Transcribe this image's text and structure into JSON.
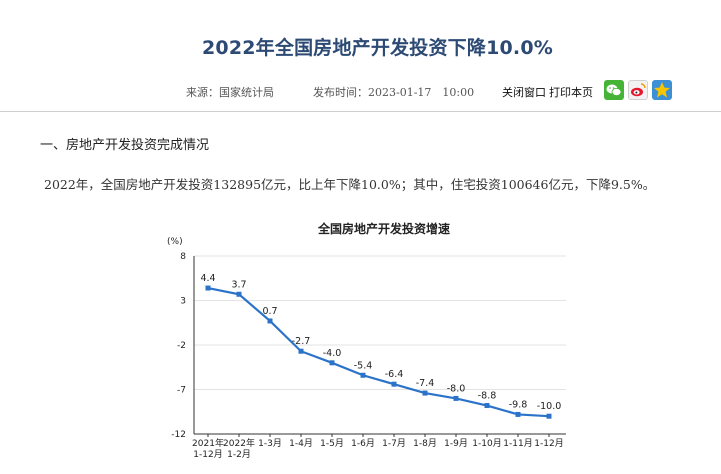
{
  "article": {
    "title": "2022年全国房地产开发投资下降10.0%",
    "source": "来源：国家统计局",
    "publish_time": "发布时间：2023-01-17　10:00",
    "close_label": "关闭窗口",
    "print_label": "打印本页",
    "share_icons": [
      "wechat-icon",
      "weibo-icon",
      "qzone-icon"
    ],
    "section_heading": "一、房地产开发投资完成情况",
    "paragraph": "2022年，全国房地产开发投资132895亿元，比上年下降10.0%；其中，住宅投资100646亿元，下降9.5%。"
  },
  "colors": {
    "title": "#2c4a73",
    "line": "#2b73c9",
    "wechat": "#45b336",
    "qzone": "#3d8fd6"
  },
  "chart_data": {
    "type": "line",
    "title": "全国房地产开发投资增速",
    "ylabel": "(%)",
    "ylim": [
      -12,
      8
    ],
    "yticks": [
      8,
      3,
      -2,
      -7,
      -12
    ],
    "categories": [
      [
        "2021年",
        "1-12月"
      ],
      [
        "2022年",
        "1-2月"
      ],
      [
        "1-3月"
      ],
      [
        "1-4月"
      ],
      [
        "1-5月"
      ],
      [
        "1-6月"
      ],
      [
        "1-7月"
      ],
      [
        "1-8月"
      ],
      [
        "1-9月"
      ],
      [
        "1-10月"
      ],
      [
        "1-11月"
      ],
      [
        "1-12月"
      ]
    ],
    "values": [
      4.4,
      3.7,
      0.7,
      -2.7,
      -4.0,
      -5.4,
      -6.4,
      -7.4,
      -8.0,
      -8.8,
      -9.8,
      -10.0
    ],
    "value_labels": [
      "4.4",
      "3.7",
      "0.7",
      "-2.7",
      "-4.0",
      "-5.4",
      "-6.4",
      "-7.4",
      "-8.0",
      "-8.8",
      "-9.8",
      "-10.0"
    ],
    "grid": true,
    "legend": "none"
  }
}
